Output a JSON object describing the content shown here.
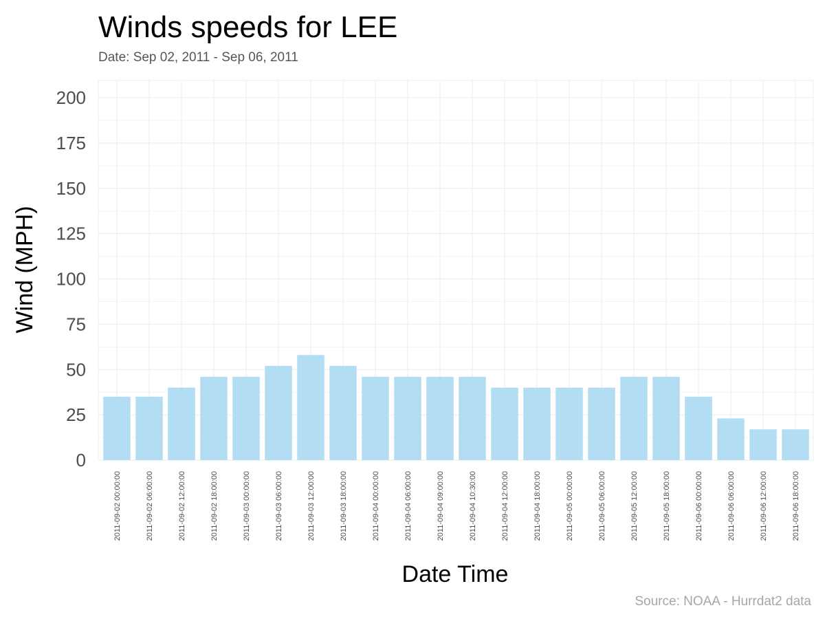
{
  "chart_data": {
    "type": "bar",
    "title": "Winds speeds for LEE",
    "subtitle": "Date:  Sep 02, 2011 - Sep 06, 2011",
    "xlabel": "Date Time",
    "ylabel": "Wind (MPH)",
    "caption": "Source: NOAA - Hurrdat2 data",
    "ylim": [
      0,
      210
    ],
    "yticks": [
      0,
      25,
      50,
      75,
      100,
      125,
      150,
      175,
      200
    ],
    "grid": true,
    "bar_color": "#b3ddf2",
    "categories": [
      "2011-09-02 00:00:00",
      "2011-09-02 06:00:00",
      "2011-09-02 12:00:00",
      "2011-09-02 18:00:00",
      "2011-09-03 00:00:00",
      "2011-09-03 06:00:00",
      "2011-09-03 12:00:00",
      "2011-09-03 18:00:00",
      "2011-09-04 00:00:00",
      "2011-09-04 06:00:00",
      "2011-09-04 09:00:00",
      "2011-09-04 10:30:00",
      "2011-09-04 12:00:00",
      "2011-09-04 18:00:00",
      "2011-09-05 00:00:00",
      "2011-09-05 06:00:00",
      "2011-09-05 12:00:00",
      "2011-09-05 18:00:00",
      "2011-09-06 00:00:00",
      "2011-09-06 06:00:00",
      "2011-09-06 12:00:00",
      "2011-09-06 18:00:00"
    ],
    "values": [
      35,
      35,
      40,
      46,
      46,
      52,
      58,
      52,
      46,
      46,
      46,
      46,
      40,
      40,
      40,
      40,
      46,
      46,
      35,
      23,
      17,
      17
    ]
  }
}
